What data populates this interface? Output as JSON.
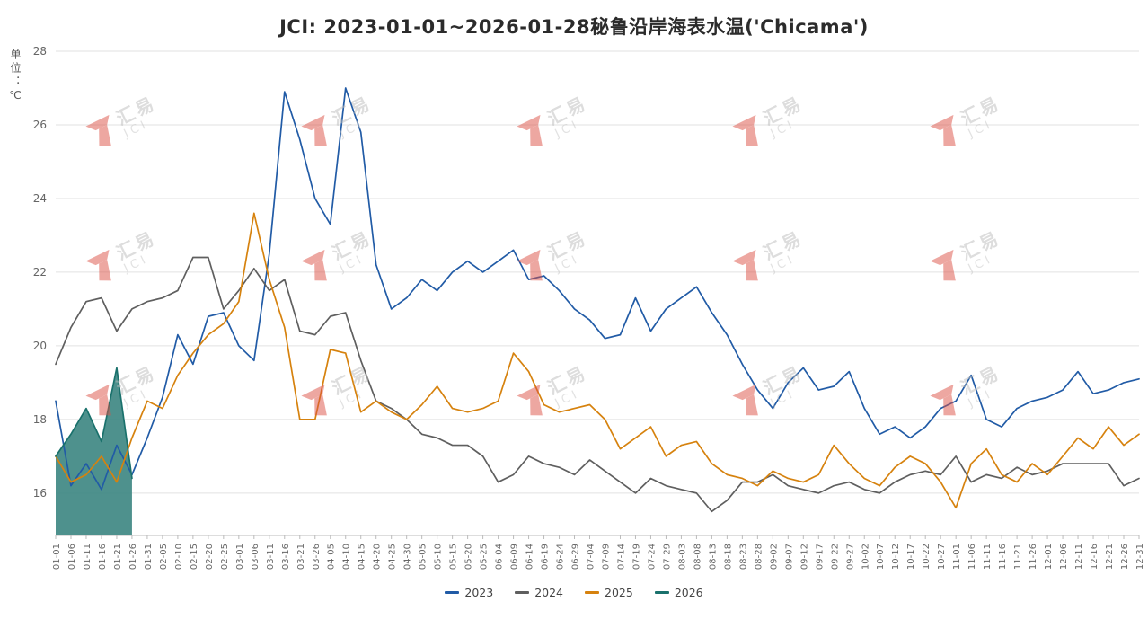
{
  "page": {
    "background": "#ffffff"
  },
  "chart_data": {
    "type": "line",
    "title": "JCI: 2023-01-01~2026-01-28秘鲁沿岸海表水温('Chicama')",
    "unit_label": "单位：℃",
    "xlabel": "",
    "ylabel": "℃",
    "ylim": [
      14.85,
      28
    ],
    "yticks": [
      16,
      18,
      20,
      22,
      24,
      26,
      28
    ],
    "grid": true,
    "legend_position": "bottom",
    "watermark": {
      "brand_cn": "汇易",
      "brand_en": "JCI",
      "logo_color": "#dd5145",
      "text_color": "#bdbdbd"
    },
    "categories": [
      "01-01",
      "01-06",
      "01-11",
      "01-16",
      "01-21",
      "01-26",
      "01-31",
      "02-05",
      "02-10",
      "02-15",
      "02-20",
      "02-25",
      "03-01",
      "03-06",
      "03-11",
      "03-16",
      "03-21",
      "03-26",
      "04-05",
      "04-10",
      "04-15",
      "04-20",
      "04-25",
      "04-30",
      "05-05",
      "05-10",
      "05-15",
      "05-20",
      "05-25",
      "06-04",
      "06-09",
      "06-14",
      "06-19",
      "06-24",
      "06-29",
      "07-04",
      "07-09",
      "07-14",
      "07-19",
      "07-24",
      "07-29",
      "08-03",
      "08-08",
      "08-13",
      "08-18",
      "08-23",
      "08-28",
      "09-02",
      "09-07",
      "09-12",
      "09-17",
      "09-22",
      "09-27",
      "10-02",
      "10-07",
      "10-12",
      "10-17",
      "10-22",
      "10-27",
      "11-01",
      "11-06",
      "11-11",
      "11-16",
      "11-21",
      "11-26",
      "12-01",
      "12-06",
      "12-11",
      "12-16",
      "12-21",
      "12-26",
      "12-31"
    ],
    "series": [
      {
        "name": "2023",
        "color": "#215ba6",
        "values": [
          18.5,
          16.2,
          16.8,
          16.1,
          17.3,
          16.5,
          17.5,
          18.6,
          20.3,
          19.5,
          20.8,
          20.9,
          20.0,
          19.6,
          22.5,
          26.9,
          25.6,
          24.0,
          23.3,
          27.0,
          25.8,
          22.2,
          21.0,
          21.3,
          21.8,
          21.5,
          22.0,
          22.3,
          22.0,
          22.3,
          22.6,
          21.8,
          21.9,
          21.5,
          21.0,
          20.7,
          20.2,
          20.3,
          21.3,
          20.4,
          21.0,
          21.3,
          21.6,
          20.9,
          20.3,
          19.5,
          18.8,
          18.3,
          19.0,
          19.4,
          18.8,
          18.9,
          19.3,
          18.3,
          17.6,
          17.8,
          17.5,
          17.8,
          18.3,
          18.5,
          19.2,
          18.0,
          17.8,
          18.3,
          18.5,
          18.6,
          18.8,
          19.3,
          18.7,
          18.8,
          19.0,
          19.1
        ]
      },
      {
        "name": "2024",
        "color": "#5f5f5f",
        "values": [
          19.5,
          20.5,
          21.2,
          21.3,
          20.4,
          21.0,
          21.2,
          21.3,
          21.5,
          22.4,
          22.4,
          21.0,
          21.5,
          22.1,
          21.5,
          21.8,
          20.4,
          20.3,
          20.8,
          20.9,
          19.6,
          18.5,
          18.3,
          18.0,
          17.6,
          17.5,
          17.3,
          17.3,
          17.0,
          16.3,
          16.5,
          17.0,
          16.8,
          16.7,
          16.5,
          16.9,
          16.6,
          16.3,
          16.0,
          16.4,
          16.2,
          16.1,
          16.0,
          15.5,
          15.8,
          16.3,
          16.3,
          16.5,
          16.2,
          16.1,
          16.0,
          16.2,
          16.3,
          16.1,
          16.0,
          16.3,
          16.5,
          16.6,
          16.5,
          17.0,
          16.3,
          16.5,
          16.4,
          16.7,
          16.5,
          16.6,
          16.8,
          16.8,
          16.8,
          16.8,
          16.2,
          16.4
        ]
      },
      {
        "name": "2025",
        "color": "#d6820e",
        "values": [
          17.0,
          16.3,
          16.5,
          17.0,
          16.3,
          17.5,
          18.5,
          18.3,
          19.2,
          19.8,
          20.3,
          20.6,
          21.2,
          23.6,
          21.8,
          20.5,
          18.0,
          18.0,
          19.9,
          19.8,
          18.2,
          18.5,
          18.2,
          18.0,
          18.4,
          18.9,
          18.3,
          18.2,
          18.3,
          18.5,
          19.8,
          19.3,
          18.4,
          18.2,
          18.3,
          18.4,
          18.0,
          17.2,
          17.5,
          17.8,
          17.0,
          17.3,
          17.4,
          16.8,
          16.5,
          16.4,
          16.2,
          16.6,
          16.4,
          16.3,
          16.5,
          17.3,
          16.8,
          16.4,
          16.2,
          16.7,
          17.0,
          16.8,
          16.3,
          15.6,
          16.8,
          17.2,
          16.5,
          16.3,
          16.8,
          16.5,
          17.0,
          17.5,
          17.2,
          17.8,
          17.3,
          17.6
        ]
      },
      {
        "name": "2026",
        "color": "#1a716c",
        "area": true,
        "fill": "#35827d",
        "fill_opacity": 0.88,
        "values": [
          17.0,
          17.6,
          18.3,
          17.4,
          19.4,
          16.4
        ]
      }
    ]
  }
}
